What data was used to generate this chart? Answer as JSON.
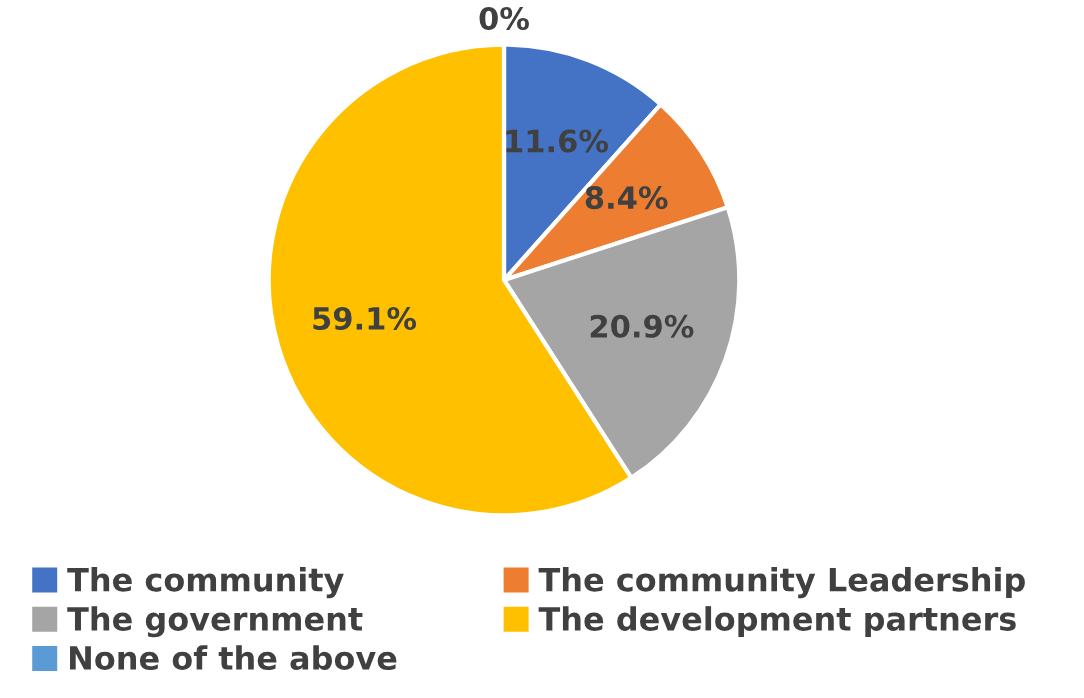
{
  "chart_data": {
    "type": "pie",
    "categories": [
      "The community",
      "The community Leadership",
      "The government",
      "The development partners",
      "None of the above"
    ],
    "values": [
      11.6,
      8.4,
      20.9,
      59.1,
      0
    ],
    "value_labels": [
      "11.6%",
      "8.4%",
      "20.9%",
      "59.1%",
      "0%"
    ],
    "colors": [
      "#4472c4",
      "#ed7d31",
      "#a5a5a5",
      "#ffc000",
      "#5b9bd5"
    ],
    "legend": "bottom"
  }
}
